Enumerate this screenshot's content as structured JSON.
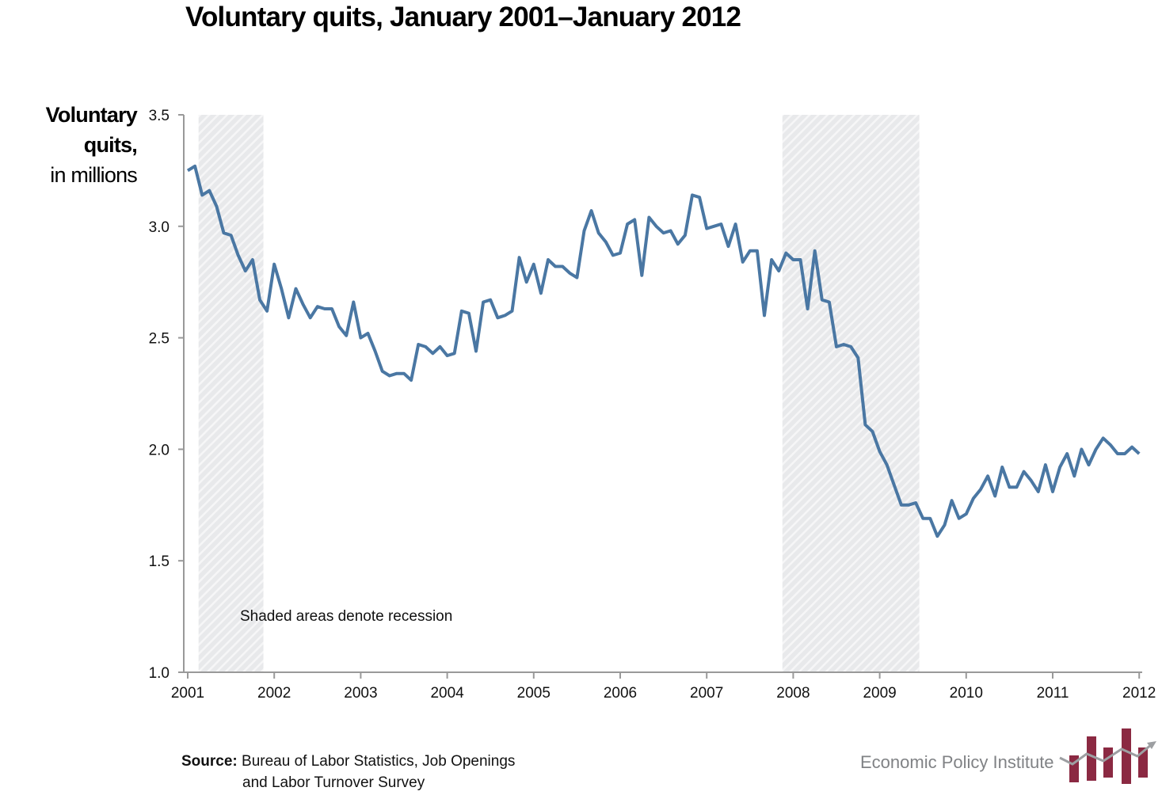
{
  "chart_data": {
    "type": "line",
    "title": "Voluntary quits, January 2001–January 2012",
    "ylabel_line1": "Voluntary quits,",
    "ylabel_line2": "in millions",
    "xlabel": "",
    "ylim": [
      1.0,
      3.5
    ],
    "yticks": [
      "1.0",
      "1.5",
      "2.0",
      "2.5",
      "3.0",
      "3.5"
    ],
    "xticks": [
      "2001",
      "2002",
      "2003",
      "2004",
      "2005",
      "2006",
      "2007",
      "2008",
      "2009",
      "2010",
      "2011",
      "2012"
    ],
    "x_start": "2001-01",
    "x_end": "2012-01",
    "frequency": "monthly",
    "grid": false,
    "line_color": "#4a77a3",
    "recessions": [
      {
        "start": "2001-03",
        "end": "2001-11"
      },
      {
        "start": "2007-12",
        "end": "2009-06"
      }
    ],
    "recession_color": "#e6e7e9",
    "annotation": "Shaded areas denote recession",
    "values": [
      3.25,
      3.27,
      3.14,
      3.16,
      3.09,
      2.97,
      2.96,
      2.87,
      2.8,
      2.85,
      2.67,
      2.62,
      2.83,
      2.72,
      2.59,
      2.72,
      2.65,
      2.59,
      2.64,
      2.63,
      2.63,
      2.55,
      2.51,
      2.66,
      2.5,
      2.52,
      2.44,
      2.35,
      2.33,
      2.34,
      2.34,
      2.31,
      2.47,
      2.46,
      2.43,
      2.46,
      2.42,
      2.43,
      2.62,
      2.61,
      2.44,
      2.66,
      2.67,
      2.59,
      2.6,
      2.62,
      2.86,
      2.75,
      2.83,
      2.7,
      2.85,
      2.82,
      2.82,
      2.79,
      2.77,
      2.98,
      3.07,
      2.97,
      2.93,
      2.87,
      2.88,
      3.01,
      3.03,
      2.78,
      3.04,
      3.0,
      2.97,
      2.98,
      2.92,
      2.96,
      3.14,
      3.13,
      2.99,
      3.0,
      3.01,
      2.91,
      3.01,
      2.84,
      2.89,
      2.89,
      2.6,
      2.85,
      2.8,
      2.88,
      2.85,
      2.85,
      2.63,
      2.89,
      2.67,
      2.66,
      2.46,
      2.47,
      2.46,
      2.41,
      2.11,
      2.08,
      1.99,
      1.93,
      1.84,
      1.75,
      1.75,
      1.76,
      1.69,
      1.69,
      1.61,
      1.66,
      1.77,
      1.69,
      1.71,
      1.78,
      1.82,
      1.88,
      1.79,
      1.92,
      1.83,
      1.83,
      1.9,
      1.86,
      1.81,
      1.93,
      1.81,
      1.92,
      1.98,
      1.88,
      2.0,
      1.93,
      2.0,
      2.05,
      2.02,
      1.98,
      1.98,
      2.01,
      1.98
    ]
  },
  "source": {
    "label": "Source:",
    "line1": "Bureau of Labor Statistics, Job Openings",
    "line2": "and Labor Turnover Survey"
  },
  "branding": {
    "name": "Economic Policy Institute",
    "logo_color": "#8b2942",
    "logo_arrow_color": "#9d9fa2"
  }
}
